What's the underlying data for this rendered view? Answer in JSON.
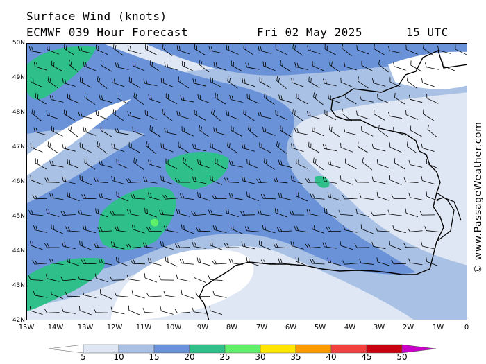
{
  "header": {
    "title": "Surface Wind (knots)",
    "model": "ECMWF 039 Hour Forecast",
    "date": "Fri 02 May 2025",
    "time": "15 UTC"
  },
  "credit": "© www.PassageWeather.com",
  "axes": {
    "lat_labels": [
      "50N",
      "49N",
      "48N",
      "47N",
      "46N",
      "45N",
      "44N",
      "43N",
      "42N"
    ],
    "lon_labels": [
      "15W",
      "14W",
      "13W",
      "12W",
      "11W",
      "10W",
      "9W",
      "8W",
      "7W",
      "6W",
      "5W",
      "4W",
      "3W",
      "2W",
      "1W",
      "0"
    ]
  },
  "legend": {
    "ticks": [
      "5",
      "10",
      "15",
      "20",
      "25",
      "30",
      "35",
      "40",
      "45",
      "50"
    ],
    "colors": [
      "#ffffff",
      "#dfe7f4",
      "#a9c1e4",
      "#6a92d8",
      "#2fbf8a",
      "#5ef06a",
      "#ffe600",
      "#ff9900",
      "#f04040",
      "#c80010",
      "#c800c8"
    ]
  },
  "map": {
    "region": "Bay of Biscay",
    "speed_field_knots": {
      "open_ocean_west": "15-20",
      "central_band": "20-25",
      "near_coast": "10-15",
      "spain_coast": "0-10"
    },
    "predominant_wind_direction": "W to NW"
  }
}
